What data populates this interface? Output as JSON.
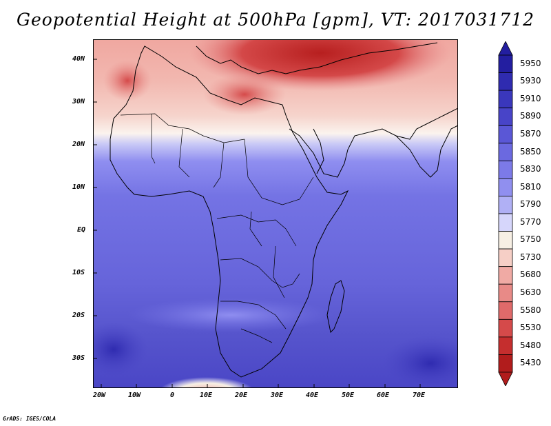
{
  "title": "Geopotential Height at 500hPa [gpm], VT: 2017031712",
  "credit": "GrADS: IGES/COLA",
  "lat_labels": [
    "40N",
    "30N",
    "20N",
    "10N",
    "EQ",
    "10S",
    "20S",
    "30S"
  ],
  "lon_labels": [
    "20W",
    "10W",
    "0",
    "10E",
    "20E",
    "30E",
    "40E",
    "50E",
    "60E",
    "70E"
  ],
  "colorbar": {
    "levels": [
      "5950",
      "5930",
      "5910",
      "5890",
      "5870",
      "5850",
      "5830",
      "5810",
      "5790",
      "5770",
      "5750",
      "5730",
      "5680",
      "5630",
      "5580",
      "5530",
      "5480",
      "5430"
    ],
    "colors": [
      "#231ea0",
      "#2f2bb0",
      "#3a37bc",
      "#4844c8",
      "#5a57d6",
      "#6b69e0",
      "#7c7ae8",
      "#908fef",
      "#b0b0f5",
      "#d6d6fb",
      "#f7efe4",
      "#f6cfc6",
      "#f0aaa4",
      "#e88a87",
      "#e06a6a",
      "#d54a4a",
      "#c52e2e",
      "#b11c1c"
    ]
  }
}
